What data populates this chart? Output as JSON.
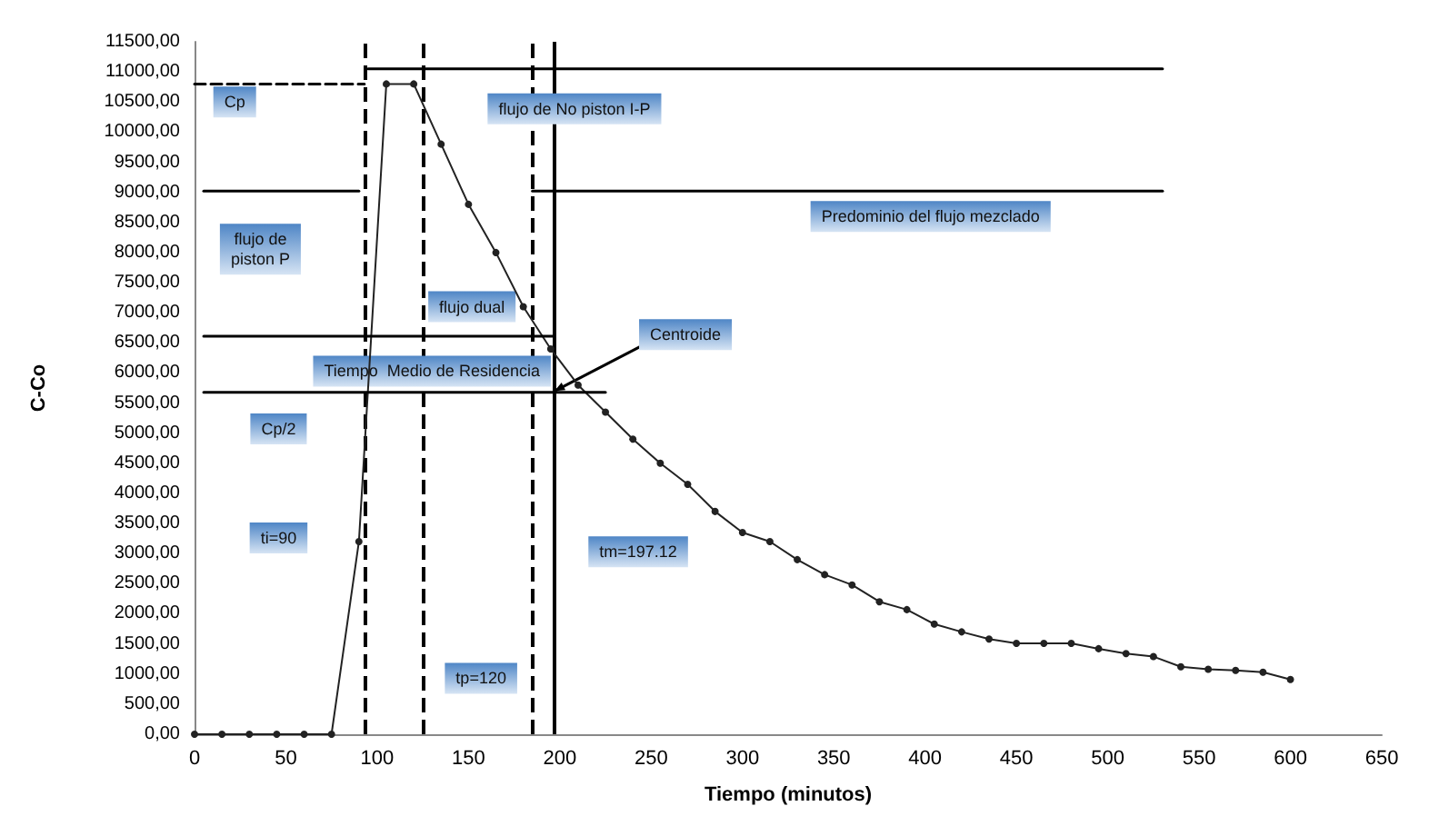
{
  "chart_data": {
    "type": "line",
    "xlabel": "Tiempo (minutos)",
    "ylabel": "C-Co",
    "xlim": [
      0,
      650
    ],
    "xticks": [
      0,
      50,
      100,
      150,
      200,
      250,
      300,
      350,
      400,
      450,
      500,
      550,
      600,
      650
    ],
    "ylim": [
      0,
      11500
    ],
    "yticks": [
      {
        "value": 0,
        "label": "0,00"
      },
      {
        "value": 500,
        "label": "500,00"
      },
      {
        "value": 1000,
        "label": "1000,00"
      },
      {
        "value": 1500,
        "label": "1500,00"
      },
      {
        "value": 2000,
        "label": "2000,00"
      },
      {
        "value": 2500,
        "label": "2500,00"
      },
      {
        "value": 3000,
        "label": "3000,00"
      },
      {
        "value": 3500,
        "label": "3500,00"
      },
      {
        "value": 4000,
        "label": "4000,00"
      },
      {
        "value": 4500,
        "label": "4500,00"
      },
      {
        "value": 5000,
        "label": "5000,00"
      },
      {
        "value": 5500,
        "label": "5500,00"
      },
      {
        "value": 6000,
        "label": "6000,00"
      },
      {
        "value": 6500,
        "label": "6500,00"
      },
      {
        "value": 7000,
        "label": "7000,00"
      },
      {
        "value": 7500,
        "label": "7500,00"
      },
      {
        "value": 8000,
        "label": "8000,00"
      },
      {
        "value": 8500,
        "label": "8500,00"
      },
      {
        "value": 9000,
        "label": "9000,00"
      },
      {
        "value": 9500,
        "label": "9500,00"
      },
      {
        "value": 10000,
        "label": "10000,00"
      },
      {
        "value": 10500,
        "label": "10500,00"
      },
      {
        "value": 11000,
        "label": "11000,00"
      },
      {
        "value": 11500,
        "label": "11500,00"
      }
    ],
    "grid": false,
    "series": [
      {
        "color": "#222222",
        "marker": "circle",
        "line_style": "solid",
        "x": [
          0,
          15,
          30,
          45,
          60,
          75,
          90,
          105,
          120,
          135,
          150,
          165,
          180,
          195,
          210,
          225,
          240,
          255,
          270,
          285,
          300,
          315,
          330,
          345,
          360,
          375,
          390,
          405,
          420,
          435,
          450,
          465,
          480,
          495,
          510,
          525,
          540,
          555,
          570,
          585,
          600
        ],
        "values": [
          0,
          0,
          0,
          0,
          0,
          0,
          3200,
          10800,
          10800,
          9800,
          8800,
          8000,
          7100,
          6400,
          5800,
          5350,
          4900,
          4500,
          4150,
          3700,
          3350,
          3200,
          2900,
          2650,
          2480,
          2200,
          2070,
          1830,
          1700,
          1580,
          1510,
          1510,
          1510,
          1420,
          1340,
          1290,
          1120,
          1080,
          1060,
          1030,
          910
        ]
      },
      {
        "color": "#000000",
        "marker": "none",
        "line_style": "dashed",
        "x": [
          0,
          93
        ],
        "values": [
          10800,
          10800
        ]
      },
      {
        "color": "#000000",
        "marker": "none",
        "line_style": "solid",
        "x": [
          95,
          530
        ],
        "values": [
          11050,
          11050
        ]
      },
      {
        "color": "#000000",
        "marker": "none",
        "line_style": "solid",
        "x": [
          5,
          90
        ],
        "values": [
          9020,
          9020
        ]
      },
      {
        "color": "#000000",
        "marker": "none",
        "line_style": "solid",
        "x": [
          185,
          530
        ],
        "values": [
          9020,
          9020
        ]
      },
      {
        "color": "#000000",
        "marker": "none",
        "line_style": "solid",
        "x": [
          5,
          197
        ],
        "values": [
          6610,
          6610
        ]
      },
      {
        "color": "#000000",
        "marker": "none",
        "line_style": "solid",
        "x": [
          5,
          225
        ],
        "values": [
          5680,
          5680
        ]
      }
    ],
    "ref_lines": [
      {
        "axis": "x",
        "value": 93,
        "line_style": "dashed",
        "color": "#000000"
      },
      {
        "axis": "x",
        "value": 125,
        "line_style": "dashed",
        "color": "#000000"
      },
      {
        "axis": "x",
        "value": 185,
        "line_style": "dashed",
        "color": "#000000"
      },
      {
        "axis": "x",
        "value": 197.12,
        "line_style": "solid",
        "color": "#000000"
      }
    ],
    "annotations": [
      {
        "text": "Cp",
        "x": 22,
        "y": 10500
      },
      {
        "text": "flujo de No piston I-P",
        "x": 208,
        "y": 11050
      },
      {
        "text": "flujo de\npiston P",
        "x": 45,
        "y": 9020
      },
      {
        "text": "Predominio del flujo mezclado",
        "x": 403,
        "y": 9020
      },
      {
        "text": "flujo dual",
        "x": 125,
        "y": 7100
      },
      {
        "text": "Centroide",
        "x": 197.12,
        "y": 5700
      },
      {
        "text": "Tiempo  Medio de Residencia",
        "x": 130,
        "y": 6030
      },
      {
        "text": "Cp/2",
        "x": 46,
        "y": 5070
      },
      {
        "text": "ti=90",
        "x": 46,
        "y": 3260
      },
      {
        "text": "tm=197.12",
        "x": 197.12,
        "y": 3030
      },
      {
        "text": "tp=120",
        "x": 125,
        "y": 930
      }
    ]
  }
}
